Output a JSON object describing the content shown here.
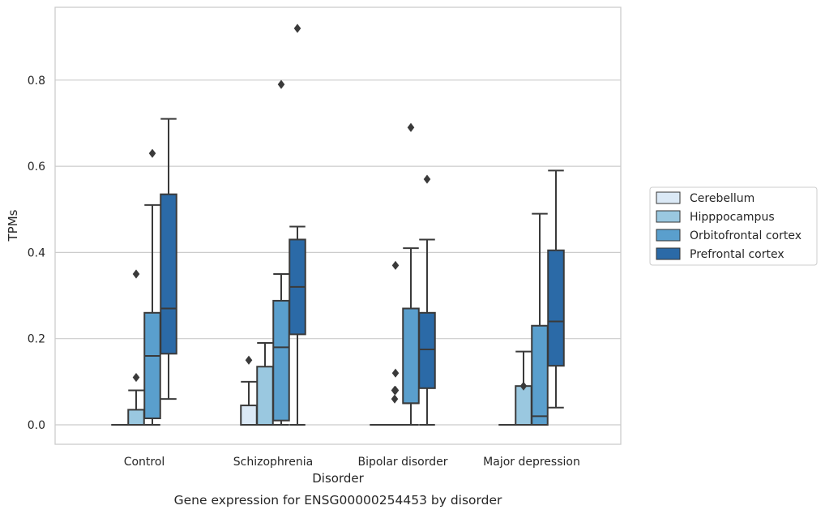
{
  "chart_data": {
    "type": "box",
    "xlabel": "Disorder",
    "ylabel": "TPMs",
    "caption": "Gene expression for ENSG00000254453 by disorder",
    "ylim": [
      -0.045,
      0.97
    ],
    "yticks": [
      "0.0",
      "0.2",
      "0.4",
      "0.6",
      "0.8"
    ],
    "grid": true,
    "legend_position": "right",
    "categories": [
      "Control",
      "Schizophrenia",
      "Bipolar disorder",
      "Major depression"
    ],
    "series": [
      {
        "name": "Cerebellum",
        "color": "#dbe9f6",
        "boxes": [
          {
            "whislo": 0,
            "q1": 0,
            "med": 0,
            "q3": 0,
            "whishi": 0,
            "fliers": []
          },
          {
            "whislo": 0,
            "q1": 0,
            "med": 0,
            "q3": 0.045,
            "whishi": 0.1,
            "fliers": [
              0.15
            ]
          },
          {
            "whislo": 0,
            "q1": 0,
            "med": 0,
            "q3": 0,
            "whishi": 0,
            "fliers": []
          },
          {
            "whislo": 0,
            "q1": 0,
            "med": 0,
            "q3": 0,
            "whishi": 0,
            "fliers": []
          }
        ]
      },
      {
        "name": "Hipppocampus",
        "color": "#9ac8e0",
        "boxes": [
          {
            "whislo": 0,
            "q1": 0,
            "med": 0,
            "q3": 0.035,
            "whishi": 0.08,
            "fliers": [
              0.11,
              0.35
            ]
          },
          {
            "whislo": 0,
            "q1": 0,
            "med": 0,
            "q3": 0.135,
            "whishi": 0.19,
            "fliers": []
          },
          {
            "whislo": 0,
            "q1": 0,
            "med": 0,
            "q3": 0,
            "whishi": 0,
            "fliers": [
              0.06,
              0.08
            ]
          },
          {
            "whislo": 0,
            "q1": 0,
            "med": 0,
            "q3": 0.09,
            "whishi": 0.17,
            "fliers": [
              0.09
            ]
          }
        ]
      },
      {
        "name": "Orbitofrontal cortex",
        "color": "#5a9fcd",
        "boxes": [
          {
            "whislo": 0,
            "q1": 0.015,
            "med": 0.16,
            "q3": 0.26,
            "whishi": 0.51,
            "fliers": [
              0.63
            ]
          },
          {
            "whislo": 0,
            "q1": 0.01,
            "med": 0.18,
            "q3": 0.288,
            "whishi": 0.35,
            "fliers": [
              0.79
            ]
          },
          {
            "whislo": 0,
            "q1": 0,
            "med": 0,
            "q3": 0,
            "whishi": 0,
            "fliers": [
              0.08,
              0.12,
              0.37
            ]
          },
          {
            "whislo": 0,
            "q1": 0,
            "med": 0.02,
            "q3": 0.23,
            "whishi": 0.49,
            "fliers": []
          }
        ]
      },
      {
        "name": "Prefrontal cortex",
        "color": "#2b6aa7",
        "boxes": [
          {
            "whislo": 0.06,
            "q1": 0.165,
            "med": 0.27,
            "q3": 0.535,
            "whishi": 0.71,
            "fliers": []
          },
          {
            "whislo": 0,
            "q1": 0.21,
            "med": 0.32,
            "q3": 0.43,
            "whishi": 0.46,
            "fliers": [
              0.92
            ]
          },
          {
            "whislo": 0,
            "q1": 0.085,
            "med": 0.175,
            "q3": 0.26,
            "whishi": 0.43,
            "fliers": [
              0.57
            ]
          },
          {
            "whislo": 0.04,
            "q1": 0.137,
            "med": 0.24,
            "q3": 0.405,
            "whishi": 0.59,
            "fliers": []
          }
        ]
      }
    ],
    "extra_boxes": [
      {
        "category": 2,
        "position": 2,
        "whislo": 0,
        "q1": 0.05,
        "med": 0.05,
        "q3": 0.27,
        "whishi": 0.41,
        "fliers": [
          0.69
        ],
        "series": "Orbitofrontal cortex"
      }
    ]
  }
}
